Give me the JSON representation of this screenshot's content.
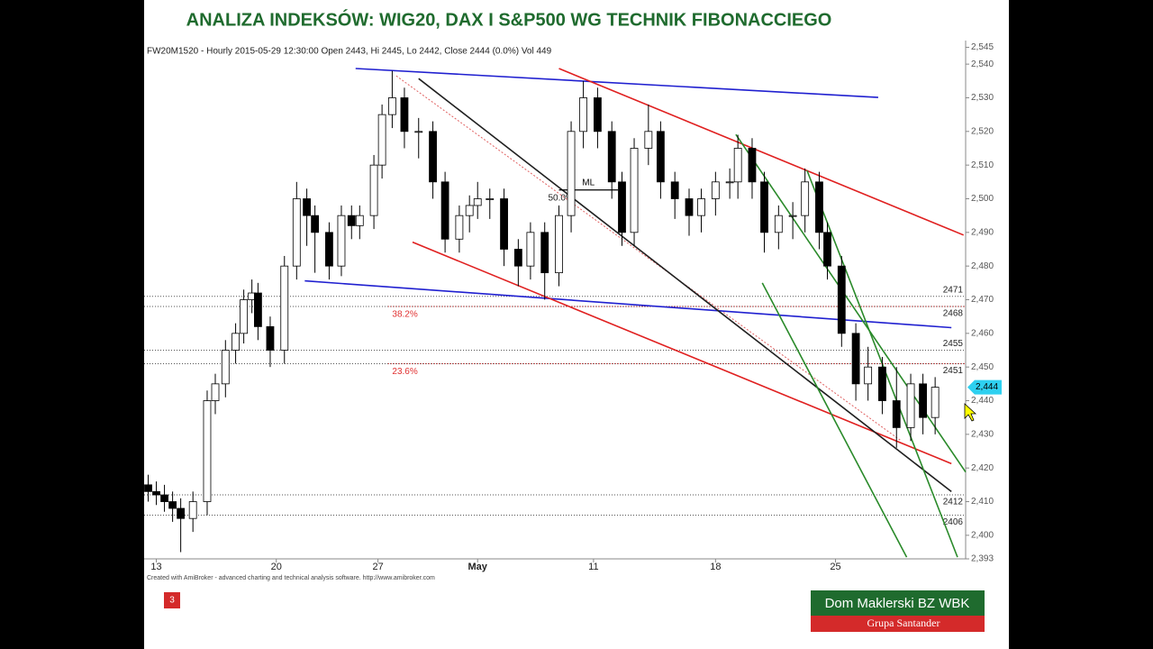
{
  "slide": {
    "title": "ANALIZA INDEKSÓW: WIG20, DAX I S&P500 WG TECHNIK FIBONACCIEGO",
    "slide_number": "3",
    "logo_name": "Dom Maklerski BZ WBK",
    "logo_group": "Grupa Santander"
  },
  "chart_data": {
    "type": "candlestick",
    "info": "FW20M1520 - Hourly 2015-05-29 12:30:00 Open 2443, Hi 2445, Lo 2442, Close 2444 (0.0%) Vol 449",
    "credit": "Created with AmiBroker - advanced charting and technical analysis software. http://www.amibroker.com",
    "x": [
      0.2,
      0.6,
      1.0,
      1.4,
      1.8,
      2.4,
      3.1,
      3.5,
      4.0,
      4.5,
      4.9,
      5.3,
      5.6,
      6.2,
      6.9,
      7.5,
      8.0,
      8.4,
      9.1,
      9.7,
      10.2,
      10.6,
      11.3,
      11.7,
      12.2,
      12.8,
      13.5,
      14.2,
      14.8,
      15.5,
      16.0,
      16.4,
      17.0,
      17.7,
      18.4,
      19.0,
      19.7,
      20.4,
      21.0,
      21.6,
      22.3,
      23.0,
      23.5,
      24.1,
      24.8,
      25.4,
      26.1,
      26.8,
      27.4,
      28.1,
      28.8,
      29.2,
      29.9,
      30.5,
      31.2,
      31.9,
      32.5,
      33.2,
      33.6,
      34.3,
      35.0,
      35.6,
      36.3,
      37.0,
      37.7,
      38.3,
      38.9
    ],
    "open": [
      2415,
      2413,
      2412,
      2410,
      2408,
      2405,
      2410,
      2440,
      2445,
      2455,
      2460,
      2470,
      2472,
      2462,
      2455,
      2480,
      2500,
      2495,
      2490,
      2480,
      2495,
      2492,
      2495,
      2510,
      2525,
      2530,
      2520,
      2520,
      2505,
      2488,
      2495,
      2498,
      2500,
      2500,
      2485,
      2480,
      2490,
      2478,
      2495,
      2520,
      2530,
      2520,
      2505,
      2490,
      2515,
      2520,
      2505,
      2500,
      2495,
      2500,
      2505,
      2505,
      2515,
      2505,
      2490,
      2495,
      2495,
      2505,
      2490,
      2480,
      2460,
      2445,
      2450,
      2440,
      2432,
      2445,
      2435
    ],
    "high": [
      2418,
      2416,
      2415,
      2413,
      2411,
      2413,
      2443,
      2448,
      2458,
      2463,
      2473,
      2476,
      2475,
      2465,
      2483,
      2505,
      2503,
      2498,
      2493,
      2498,
      2498,
      2498,
      2513,
      2528,
      2538,
      2533,
      2524,
      2523,
      2508,
      2498,
      2501,
      2505,
      2503,
      2503,
      2488,
      2493,
      2493,
      2498,
      2523,
      2535,
      2533,
      2523,
      2508,
      2518,
      2528,
      2523,
      2508,
      2503,
      2503,
      2508,
      2509,
      2519,
      2518,
      2508,
      2498,
      2499,
      2509,
      2508,
      2493,
      2483,
      2463,
      2456,
      2453,
      2450,
      2448,
      2448,
      2447
    ],
    "low": [
      2410,
      2409,
      2407,
      2404,
      2395,
      2401,
      2406,
      2436,
      2441,
      2451,
      2457,
      2466,
      2458,
      2450,
      2451,
      2476,
      2486,
      2478,
      2476,
      2477,
      2488,
      2488,
      2491,
      2506,
      2521,
      2515,
      2512,
      2500,
      2484,
      2484,
      2490,
      2494,
      2494,
      2480,
      2474,
      2476,
      2470,
      2474,
      2490,
      2515,
      2515,
      2500,
      2486,
      2486,
      2510,
      2500,
      2494,
      2489,
      2490,
      2495,
      2500,
      2500,
      2500,
      2484,
      2485,
      2488,
      2490,
      2485,
      2476,
      2456,
      2440,
      2440,
      2436,
      2426,
      2428,
      2430,
      2430
    ],
    "close": [
      2413,
      2412,
      2410,
      2408,
      2405,
      2410,
      2440,
      2445,
      2455,
      2460,
      2470,
      2472,
      2462,
      2455,
      2480,
      2500,
      2495,
      2490,
      2480,
      2495,
      2492,
      2495,
      2510,
      2525,
      2530,
      2520,
      2520,
      2505,
      2488,
      2495,
      2498,
      2500,
      2500,
      2485,
      2480,
      2490,
      2478,
      2495,
      2520,
      2530,
      2520,
      2505,
      2490,
      2515,
      2520,
      2505,
      2500,
      2495,
      2500,
      2505,
      2505,
      2515,
      2505,
      2490,
      2495,
      2495,
      2505,
      2490,
      2480,
      2460,
      2445,
      2450,
      2440,
      2432,
      2445,
      2435,
      2444
    ],
    "last_price": {
      "value": 2444,
      "label": "2,444"
    },
    "xlim": [
      0,
      40.4
    ],
    "xticks": [
      {
        "value": 0.6,
        "label": "13"
      },
      {
        "value": 6.5,
        "label": "20"
      },
      {
        "value": 11.5,
        "label": "27"
      },
      {
        "value": 16.4,
        "label": "May"
      },
      {
        "value": 22.1,
        "label": "11"
      },
      {
        "value": 28.1,
        "label": "18"
      },
      {
        "value": 34.0,
        "label": "25"
      }
    ],
    "ylim": [
      2393,
      2547
    ],
    "yticks": [
      {
        "value": 2545,
        "label": "2,545"
      },
      {
        "value": 2540,
        "label": "2,540"
      },
      {
        "value": 2530,
        "label": "2,530"
      },
      {
        "value": 2520,
        "label": "2,520"
      },
      {
        "value": 2510,
        "label": "2,510"
      },
      {
        "value": 2500,
        "label": "2,500"
      },
      {
        "value": 2490,
        "label": "2,490"
      },
      {
        "value": 2480,
        "label": "2,480"
      },
      {
        "value": 2470,
        "label": "2,470"
      },
      {
        "value": 2460,
        "label": "2,460"
      },
      {
        "value": 2450,
        "label": "2,450"
      },
      {
        "value": 2440,
        "label": "2,440"
      },
      {
        "value": 2430,
        "label": "2,430"
      },
      {
        "value": 2420,
        "label": "2,420"
      },
      {
        "value": 2410,
        "label": "2,410"
      },
      {
        "value": 2400,
        "label": "2,400"
      },
      {
        "value": 2393,
        "label": "2,393"
      }
    ],
    "levels": [
      2471,
      2468,
      2455,
      2451,
      2412,
      2406
    ],
    "fib_levels": [
      {
        "value": 2468,
        "label": "38.2%"
      },
      {
        "value": 2451,
        "label": "23.6%"
      }
    ],
    "midline": {
      "label": "ML",
      "fib_label": "50.0%",
      "x": [
        20.4,
        23.3
      ],
      "y": [
        2502.6,
        2502.6
      ]
    },
    "trendlines": [
      {
        "color": "#2020d0",
        "x": [
          10.4,
          36.1
        ],
        "y": [
          2538.7,
          2530.1
        ]
      },
      {
        "color": "#2020d0",
        "x": [
          7.9,
          39.7
        ],
        "y": [
          2475.6,
          2461.7
        ]
      },
      {
        "color": "#e02020",
        "x": [
          20.4,
          40.3
        ],
        "y": [
          2538.7,
          2489.2
        ]
      },
      {
        "color": "#e02020",
        "x": [
          13.2,
          39.7
        ],
        "y": [
          2487.1,
          2421.3
        ]
      },
      {
        "color": "#202020",
        "x": [
          13.5,
          39.7
        ],
        "y": [
          2535.7,
          2413
        ]
      },
      {
        "color": "#2a8a2a",
        "x": [
          29.1,
          40.4
        ],
        "y": [
          2519.1,
          2418.8
        ]
      },
      {
        "color": "#2a8a2a",
        "x": [
          30.4,
          37.5
        ],
        "y": [
          2475,
          2393.5
        ]
      },
      {
        "color": "#2a8a2a",
        "x": [
          32.6,
          40
        ],
        "y": [
          2508.4,
          2393.5
        ]
      }
    ],
    "dashed_line": {
      "color": "#e06060",
      "x": [
        12.4,
        37.2
      ],
      "y": [
        2536.5,
        2428.2
      ]
    }
  }
}
